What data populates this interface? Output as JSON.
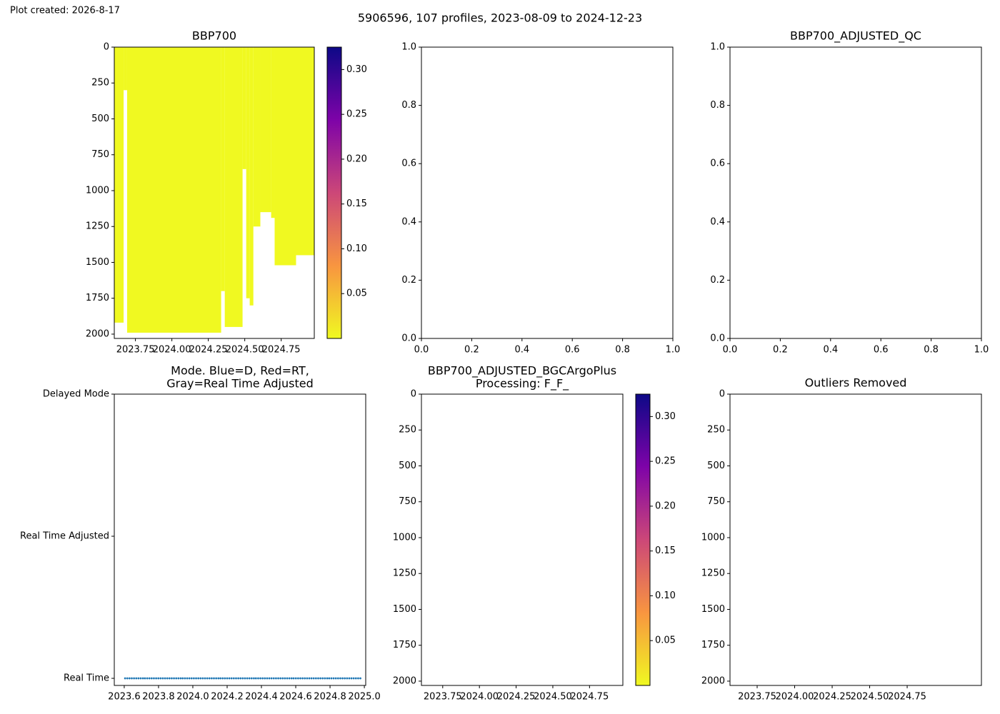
{
  "created": "Plot created: 2026-8-17",
  "title": "5906596, 107 profiles, 2023-08-09 to 2024-12-23",
  "chart_data": [
    {
      "type": "heatmap",
      "title": "BBP700",
      "color": "#f0f921",
      "bins": [
        2023.605,
        2023.669,
        2023.693,
        2024.338,
        2024.363,
        2024.485,
        2024.51,
        2024.534,
        2024.559,
        2024.607,
        2024.681,
        2024.705,
        2024.852,
        2024.977
      ],
      "max_depth": [
        1920,
        300,
        1990,
        1700,
        1950,
        850,
        1750,
        1800,
        1250,
        1150,
        1190,
        1520,
        1450
      ],
      "xlim": [
        2023.605,
        2024.977
      ],
      "xticks": [
        {
          "value": 2023.75,
          "label": "2023.75"
        },
        {
          "value": 2024,
          "label": "2024.00"
        },
        {
          "value": 2024.25,
          "label": "2024.25"
        },
        {
          "value": 2024.5,
          "label": "2024.50"
        },
        {
          "value": 2024.75,
          "label": "2024.75"
        }
      ],
      "ylim": [
        2030,
        0
      ],
      "yticks": [
        0,
        250,
        500,
        750,
        1000,
        1250,
        1500,
        1750,
        2000
      ],
      "colorbar": {
        "lim": [
          0,
          0.325
        ],
        "ticks": [
          0.05,
          {
            "value": 0.1,
            "label": "0.10"
          },
          0.15,
          {
            "value": 0.2,
            "label": "0.20"
          },
          0.25,
          {
            "value": 0.3,
            "label": "0.30"
          }
        ]
      }
    },
    {
      "type": "empty",
      "xlim": [
        0,
        1
      ],
      "xticks": [
        {
          "value": 0,
          "label": "0.0"
        },
        0.2,
        0.4,
        0.6,
        0.8,
        {
          "value": 1,
          "label": "1.0"
        }
      ],
      "ylim": [
        0,
        1
      ],
      "yticks": [
        {
          "value": 0,
          "label": "0.0"
        },
        0.2,
        0.4,
        0.6,
        0.8,
        {
          "value": 1,
          "label": "1.0"
        }
      ]
    },
    {
      "type": "empty",
      "title": "BBP700_ADJUSTED_QC",
      "xlim": [
        0,
        1
      ],
      "xticks": [
        {
          "value": 0,
          "label": "0.0"
        },
        0.2,
        0.4,
        0.6,
        0.8,
        {
          "value": 1,
          "label": "1.0"
        }
      ],
      "ylim": [
        0,
        1
      ],
      "yticks": [
        {
          "value": 0,
          "label": "0.0"
        },
        0.2,
        0.4,
        0.6,
        0.8,
        {
          "value": 1,
          "label": "1.0"
        }
      ]
    },
    {
      "type": "scatter",
      "title": [
        "Mode. Blue=D, Red=RT,",
        "Gray=Real Time Adjusted"
      ],
      "color": "#1f77b4",
      "x": [
        2023.605,
        2023.618,
        2023.631,
        2023.644,
        2023.657,
        2023.67,
        2023.683,
        2023.696,
        2023.709,
        2023.721,
        2023.734,
        2023.747,
        2023.76,
        2023.773,
        2023.786,
        2023.799,
        2023.812,
        2023.825,
        2023.838,
        2023.851,
        2023.864,
        2023.877,
        2023.89,
        2023.903,
        2023.916,
        2023.929,
        2023.941,
        2023.954,
        2023.967,
        2023.98,
        2023.993,
        2024.006,
        2024.019,
        2024.032,
        2024.045,
        2024.058,
        2024.071,
        2024.084,
        2024.097,
        2024.11,
        2024.123,
        2024.136,
        2024.149,
        2024.161,
        2024.174,
        2024.187,
        2024.2,
        2024.213,
        2024.226,
        2024.239,
        2024.252,
        2024.265,
        2024.278,
        2024.291,
        2024.304,
        2024.317,
        2024.33,
        2024.343,
        2024.356,
        2024.368,
        2024.381,
        2024.394,
        2024.407,
        2024.42,
        2024.433,
        2024.446,
        2024.459,
        2024.472,
        2024.485,
        2024.498,
        2024.511,
        2024.524,
        2024.537,
        2024.55,
        2024.563,
        2024.576,
        2024.588,
        2024.601,
        2024.614,
        2024.627,
        2024.64,
        2024.653,
        2024.666,
        2024.679,
        2024.692,
        2024.705,
        2024.718,
        2024.731,
        2024.744,
        2024.757,
        2024.77,
        2024.783,
        2024.795,
        2024.808,
        2024.821,
        2024.834,
        2024.847,
        2024.86,
        2024.873,
        2024.886,
        2024.899,
        2024.912,
        2024.925,
        2024.938,
        2024.951,
        2024.964,
        2024.977
      ],
      "values": [
        0,
        0,
        0,
        0,
        0,
        0,
        0,
        0,
        0,
        0,
        0,
        0,
        0,
        0,
        0,
        0,
        0,
        0,
        0,
        0,
        0,
        0,
        0,
        0,
        0,
        0,
        0,
        0,
        0,
        0,
        0,
        0,
        0,
        0,
        0,
        0,
        0,
        0,
        0,
        0,
        0,
        0,
        0,
        0,
        0,
        0,
        0,
        0,
        0,
        0,
        0,
        0,
        0,
        0,
        0,
        0,
        0,
        0,
        0,
        0,
        0,
        0,
        0,
        0,
        0,
        0,
        0,
        0,
        0,
        0,
        0,
        0,
        0,
        0,
        0,
        0,
        0,
        0,
        0,
        0,
        0,
        0,
        0,
        0,
        0,
        0,
        0,
        0,
        0,
        0,
        0,
        0,
        0,
        0,
        0,
        0,
        0,
        0,
        0,
        0,
        0,
        0,
        0,
        0,
        0,
        0,
        0
      ],
      "xlim": [
        2023.542,
        2025.008
      ],
      "xticks": [
        2023.6,
        2023.8,
        {
          "value": 2024,
          "label": "2024.0"
        },
        2024.2,
        2024.4,
        2024.6,
        2024.8,
        {
          "value": 2025,
          "label": "2025.0"
        }
      ],
      "ylim": [
        -0.05,
        2
      ],
      "yticks": [
        {
          "value": 0,
          "label": "Real Time"
        },
        {
          "value": 1,
          "label": "Real Time Adjusted"
        },
        {
          "value": 2,
          "label": "Delayed Mode"
        }
      ]
    },
    {
      "type": "heatmap",
      "title": [
        "BBP700_ADJUSTED_BGCArgoPlus",
        "Processing: F_F_"
      ],
      "xlim": [
        2023.605,
        2024.977
      ],
      "xticks": [
        {
          "value": 2023.75,
          "label": "2023.75"
        },
        {
          "value": 2024,
          "label": "2024.00"
        },
        {
          "value": 2024.25,
          "label": "2024.25"
        },
        {
          "value": 2024.5,
          "label": "2024.50"
        },
        {
          "value": 2024.75,
          "label": "2024.75"
        }
      ],
      "ylim": [
        2030,
        0
      ],
      "yticks": [
        0,
        250,
        500,
        750,
        1000,
        1250,
        1500,
        1750,
        2000
      ],
      "colorbar": {
        "lim": [
          0,
          0.325
        ],
        "ticks": [
          0.05,
          {
            "value": 0.1,
            "label": "0.10"
          },
          0.15,
          {
            "value": 0.2,
            "label": "0.20"
          },
          0.25,
          {
            "value": 0.3,
            "label": "0.30"
          }
        ]
      }
    },
    {
      "type": "heatmap",
      "title": "Outliers Removed",
      "xlim": [
        2023.569,
        2025.245
      ],
      "xticks": [
        {
          "value": 2023.75,
          "label": "2023.75"
        },
        {
          "value": 2024,
          "label": "2024.00"
        },
        {
          "value": 2024.25,
          "label": "2024.25"
        },
        {
          "value": 2024.5,
          "label": "2024.50"
        },
        {
          "value": 2024.75,
          "label": "2024.75"
        }
      ],
      "ylim": [
        2030,
        0
      ],
      "yticks": [
        0,
        250,
        500,
        750,
        1000,
        1250,
        1500,
        1750,
        2000
      ]
    }
  ]
}
